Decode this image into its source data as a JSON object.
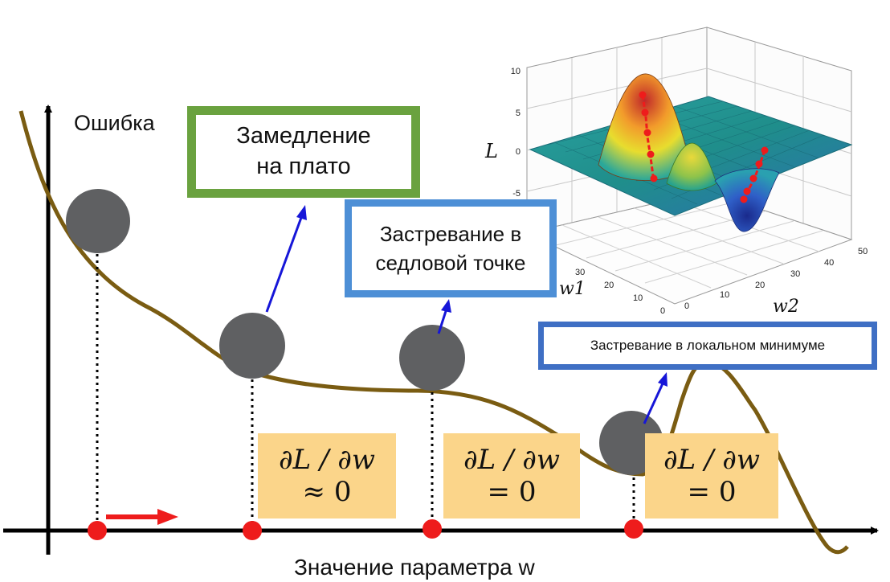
{
  "labels": {
    "y_axis": "Ошибка",
    "x_axis": "Значение параметра w"
  },
  "callouts": {
    "plateau": "Замедление\nна плато",
    "saddle": "Застревание в\nседловой точке",
    "local_min": "Застревание в локальном минимуме"
  },
  "formulas": [
    {
      "top": "∂L / ∂w",
      "bottom": "≈ 0"
    },
    {
      "top": "∂L / ∂w",
      "bottom": "= 0"
    },
    {
      "top": "∂L / ∂w",
      "bottom": "= 0"
    }
  ],
  "surface_plot": {
    "z_label": "L",
    "w1_label": "w1",
    "w2_label": "w2",
    "z_ticks": [
      "10",
      "5",
      "0",
      "-5"
    ],
    "w1_ticks": [
      "30",
      "20",
      "10",
      "0"
    ],
    "w2_ticks": [
      "0",
      "10",
      "20",
      "30",
      "40",
      "50"
    ]
  },
  "colors": {
    "curve": "#7a5c12",
    "ball": "#5f6062",
    "marker": "#ee1c1c",
    "arrow": "#1616d8",
    "plateau_border": "#6aa23f",
    "saddle_border": "#4d8fd6",
    "localmin_border": "#3f6fc4",
    "formula_bg": "#fbd58a"
  }
}
